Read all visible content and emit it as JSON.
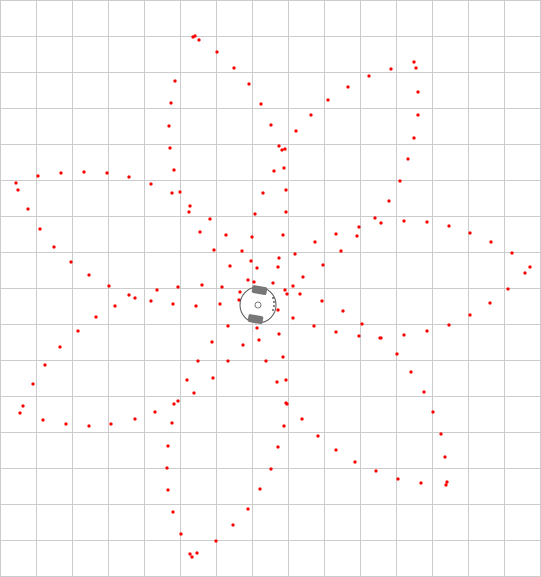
{
  "colors": {
    "background": "#ffffff",
    "grid": "#cccccc",
    "trail": "#ff0000",
    "robot_body": "#ffffff",
    "robot_outline": "#555555",
    "robot_wheels": "#777777"
  },
  "icons": {
    "robot": "robot-icon"
  }
}
